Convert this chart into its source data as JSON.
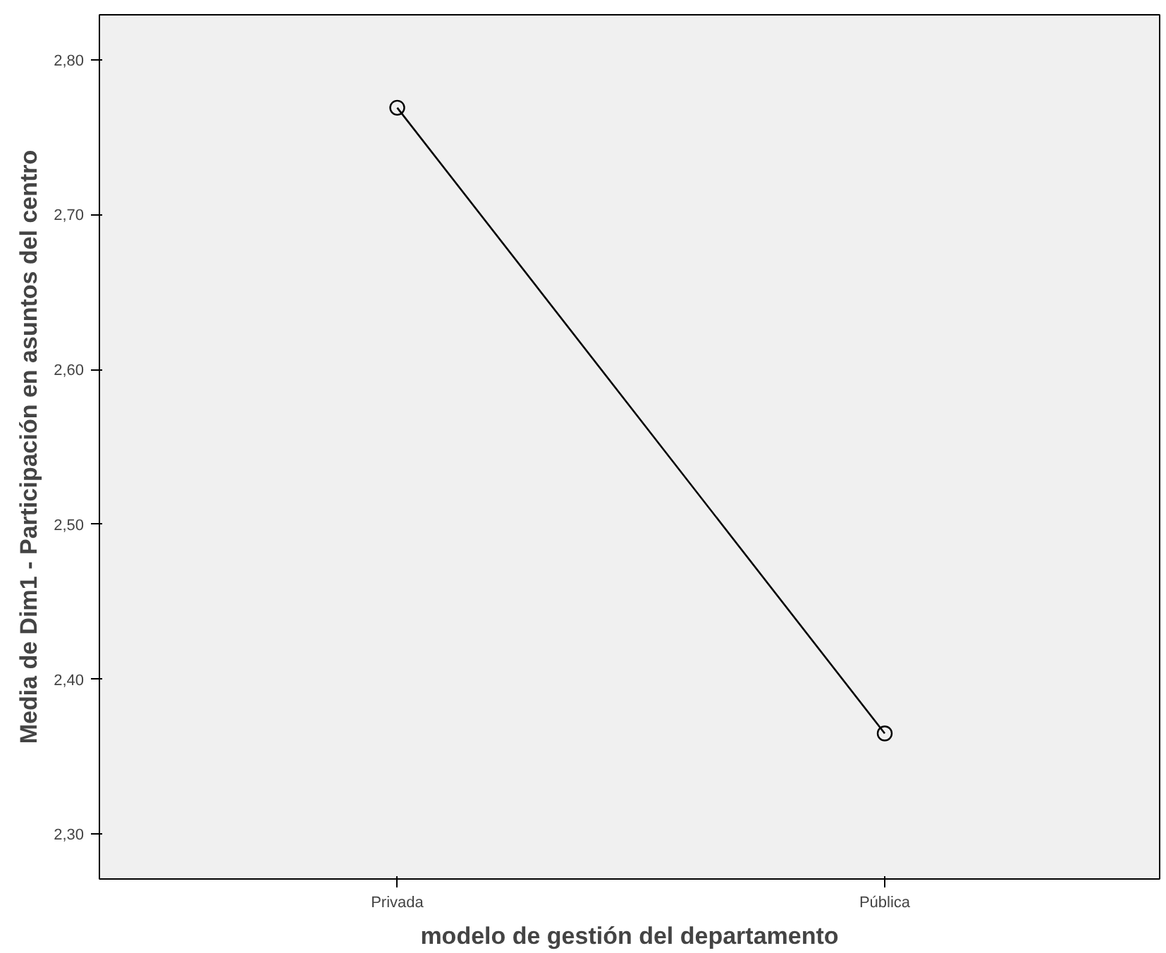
{
  "chart_data": {
    "type": "line",
    "xlabel": "modelo de gestión del departamento",
    "ylabel": "Media de Dim1 - Participación en asuntos del centro",
    "categories": [
      "Privada",
      "Pública"
    ],
    "series": [
      {
        "color": "#000000",
        "values": [
          2.769,
          2.365
        ]
      }
    ],
    "ylim": [
      2.271,
      2.829
    ],
    "yticks": [
      {
        "value": 2.3,
        "label": "2,30"
      },
      {
        "value": 2.4,
        "label": "2,40"
      },
      {
        "value": 2.5,
        "label": "2,50"
      },
      {
        "value": 2.6,
        "label": "2,60"
      },
      {
        "value": 2.7,
        "label": "2,70"
      },
      {
        "value": 2.8,
        "label": "2,80"
      }
    ],
    "marker": "circle",
    "line_style": "solid",
    "grid": false
  }
}
